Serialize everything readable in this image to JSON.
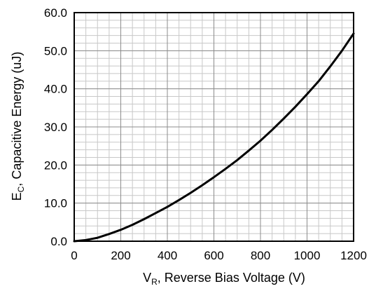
{
  "chart_data": {
    "type": "line",
    "title": "",
    "xlabel": {
      "main": "V",
      "sub": "R",
      "rest": ", Reverse Bias Voltage (V)"
    },
    "ylabel": {
      "main": "E",
      "sub": "C",
      "rest": ", Capacitive Energy (uJ)"
    },
    "xlim": [
      0,
      1200
    ],
    "ylim": [
      0,
      60
    ],
    "xticks": [
      0,
      200,
      400,
      600,
      800,
      1000,
      1200
    ],
    "yticks": [
      0,
      10,
      20,
      30,
      40,
      50,
      60
    ],
    "xtick_labels": [
      "0",
      "200",
      "400",
      "600",
      "800",
      "1000",
      "1200"
    ],
    "ytick_labels": [
      "0.0",
      "10.0",
      "20.0",
      "30.0",
      "40.0",
      "50.0",
      "60.0"
    ],
    "grid": true,
    "minor_grid": true,
    "legend": "none",
    "line_color": "#000000",
    "series": [
      {
        "x": [
          0,
          50,
          100,
          150,
          200,
          250,
          300,
          350,
          400,
          450,
          500,
          550,
          600,
          650,
          700,
          750,
          800,
          850,
          900,
          950,
          1000,
          1050,
          1100,
          1150,
          1200
        ],
        "values": [
          0.0,
          0.3,
          0.9,
          1.9,
          3.0,
          4.3,
          5.8,
          7.4,
          9.0,
          10.8,
          12.7,
          14.7,
          16.8,
          19.0,
          21.3,
          23.8,
          26.4,
          29.2,
          32.2,
          35.3,
          38.6,
          42.0,
          45.9,
          50.0,
          54.5
        ]
      }
    ]
  }
}
